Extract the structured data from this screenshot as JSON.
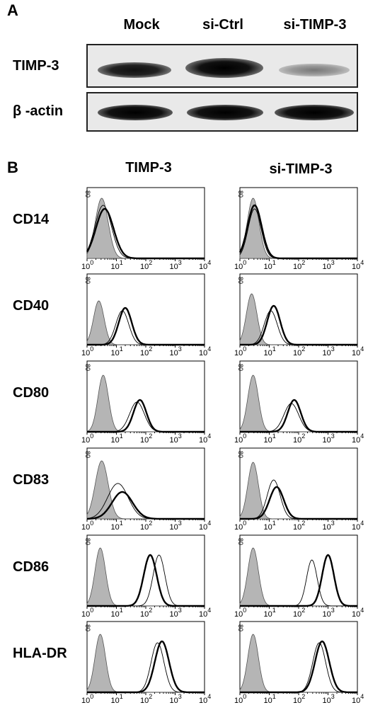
{
  "panel_a": {
    "letter": "A",
    "lanes": [
      "Mock",
      "si-Ctrl",
      "si-TIMP-3"
    ],
    "rows": [
      {
        "label": "TIMP-3",
        "band_intensity": [
          0.85,
          0.95,
          0.35
        ]
      },
      {
        "label": "β -actin",
        "band_intensity": [
          0.95,
          0.95,
          0.95
        ]
      }
    ]
  },
  "panel_b": {
    "letter": "B",
    "columns": [
      "TIMP-3",
      "si-TIMP-3"
    ],
    "markers": [
      "CD14",
      "CD40",
      "CD80",
      "CD83",
      "CD86",
      "HLA-DR"
    ],
    "tick_labels": [
      "10",
      "10",
      "10",
      "10",
      "10"
    ],
    "tick_exponents": [
      "0",
      "1",
      "2",
      "3",
      "4"
    ],
    "y_tick_label": "80",
    "chart_data": {
      "type": "area",
      "xscale": "log",
      "xlim": [
        1,
        10000
      ],
      "note_series": [
        "isotype (filled gray)",
        "control (thin)",
        "treated (thick)"
      ]
    }
  }
}
